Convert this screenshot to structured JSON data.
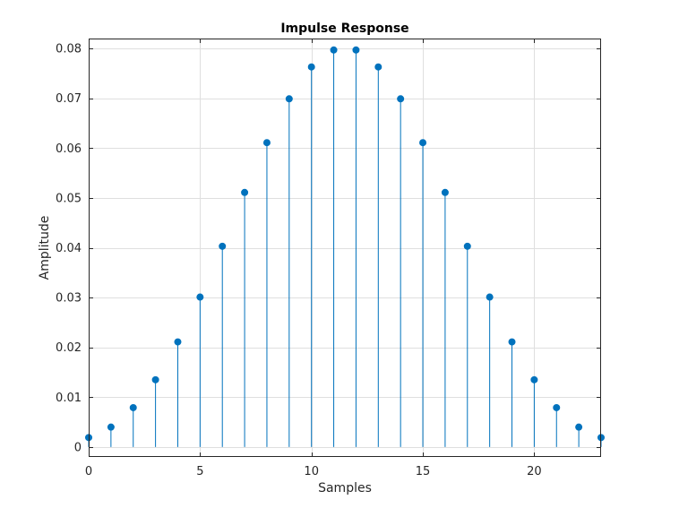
{
  "chart_data": {
    "type": "stem",
    "title": "Impulse Response",
    "xlabel": "Samples",
    "ylabel": "Amplitude",
    "xlim": [
      0,
      23
    ],
    "ylim": [
      -0.002,
      0.082
    ],
    "xticks": [
      0,
      5,
      10,
      15,
      20
    ],
    "yticks": [
      0,
      0.01,
      0.02,
      0.03,
      0.04,
      0.05,
      0.06,
      0.07,
      0.08
    ],
    "ytick_labels": [
      "0",
      "0.01",
      "0.02",
      "0.03",
      "0.04",
      "0.05",
      "0.06",
      "0.07",
      "0.08"
    ],
    "grid": true,
    "series": [
      {
        "x": [
          0,
          1,
          2,
          3,
          4,
          5,
          6,
          7,
          8,
          9,
          10,
          11,
          12,
          13,
          14,
          15,
          16,
          17,
          18,
          19,
          20,
          21,
          22,
          23
        ],
        "values": [
          0.0019,
          0.004,
          0.0079,
          0.0135,
          0.0211,
          0.0301,
          0.0403,
          0.0511,
          0.0611,
          0.0699,
          0.0763,
          0.0797,
          0.0797,
          0.0763,
          0.0699,
          0.0611,
          0.0511,
          0.0403,
          0.0301,
          0.0211,
          0.0135,
          0.0079,
          0.004,
          0.0019
        ],
        "color": "#0072bd"
      }
    ]
  }
}
